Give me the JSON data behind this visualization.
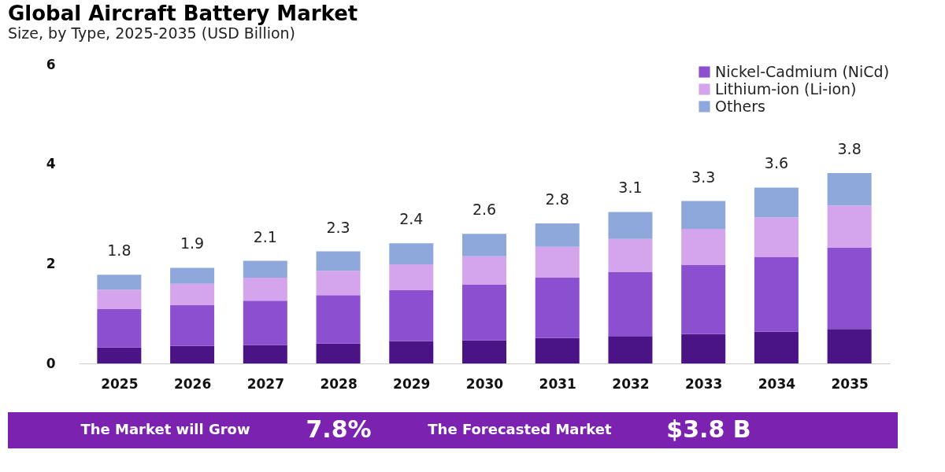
{
  "chart_data": {
    "type": "bar",
    "title": "Global Aircraft Battery Market",
    "subtitle": "Size, by Type, 2025-2035 (USD Billion)",
    "categories": [
      "2025",
      "2026",
      "2027",
      "2028",
      "2029",
      "2030",
      "2031",
      "2032",
      "2033",
      "2034",
      "2035"
    ],
    "stacked": true,
    "series": [
      {
        "color": "#4a1486",
        "values": [
          0.32,
          0.35,
          0.37,
          0.4,
          0.45,
          0.46,
          0.51,
          0.55,
          0.59,
          0.64,
          0.69
        ]
      },
      {
        "name": "Nickel-Cadmium (NiCd)",
        "color": "#8b4fd0",
        "values": [
          0.77,
          0.82,
          0.89,
          0.97,
          1.02,
          1.12,
          1.21,
          1.29,
          1.39,
          1.5,
          1.64
        ]
      },
      {
        "name": "Lithium-ion (Li-ion)",
        "color": "#d4a5ec",
        "values": [
          0.39,
          0.43,
          0.46,
          0.49,
          0.52,
          0.57,
          0.62,
          0.66,
          0.72,
          0.79,
          0.84
        ]
      },
      {
        "name": "Others",
        "color": "#8fa8dc",
        "values": [
          0.3,
          0.32,
          0.34,
          0.39,
          0.42,
          0.45,
          0.47,
          0.54,
          0.56,
          0.6,
          0.65
        ]
      }
    ],
    "totals": [
      "1.8",
      "1.9",
      "2.1",
      "2.3",
      "2.4",
      "2.6",
      "2.8",
      "3.1",
      "3.3",
      "3.6",
      "3.8"
    ],
    "ylim": [
      0,
      6
    ],
    "yticks": [
      0,
      2,
      4,
      6
    ],
    "grid": false,
    "legend": "top right",
    "annotations": [
      "The Market will Grow",
      "7.8%",
      "The Forecasted Market",
      "$3.8 B"
    ]
  }
}
